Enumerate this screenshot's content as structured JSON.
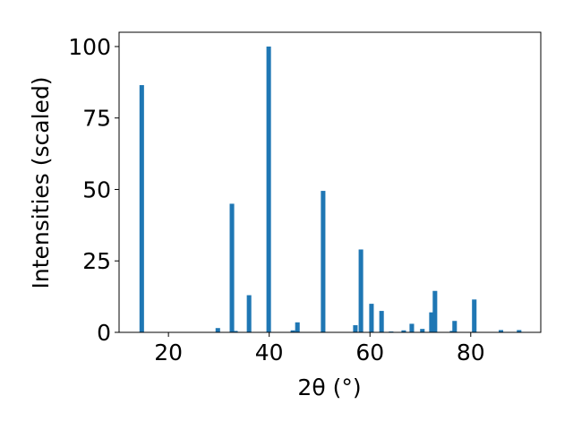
{
  "chart_data": {
    "type": "bar",
    "xlabel": "2θ (°)",
    "ylabel": "Intensities (scaled)",
    "x": [
      14.7,
      29.8,
      32.6,
      33.3,
      36.0,
      39.9,
      44.7,
      45.6,
      50.7,
      57.1,
      58.2,
      60.3,
      62.3,
      64.2,
      66.7,
      68.3,
      70.4,
      72.2,
      72.9,
      76.3,
      76.8,
      80.7,
      86.0,
      89.6
    ],
    "values": [
      86.5,
      1.5,
      45,
      0.5,
      13,
      100,
      0.7,
      3.5,
      49.5,
      2.5,
      29,
      10,
      7.5,
      0.3,
      0.7,
      3,
      1.2,
      7,
      14.5,
      0.5,
      4,
      11.5,
      0.8,
      0.8
    ],
    "color": "#1f77b4",
    "xlim": [
      10.2,
      93.9
    ],
    "xticks": [
      20,
      40,
      60,
      80
    ],
    "ylim": [
      0,
      105
    ],
    "yticks": [
      0,
      25,
      50,
      75,
      100
    ],
    "grid": false
  }
}
